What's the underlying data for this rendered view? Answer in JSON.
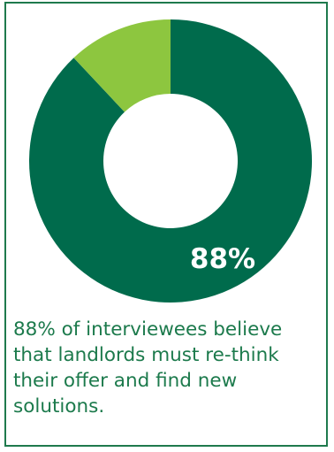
{
  "chart_data": {
    "type": "pie",
    "donut": true,
    "categories": [
      "",
      ""
    ],
    "values": [
      88,
      12
    ],
    "slice_labels": [
      "88%",
      ""
    ],
    "colors": [
      "#006b4c",
      "#8dc63f"
    ],
    "label_color": "#ffffff",
    "title": "",
    "legend": "none"
  },
  "caption": {
    "text": "88% of interviewees believe that landlords must re-think their offer and find new solutions.",
    "color": "#1c7a4c"
  },
  "frame": {
    "border_color": "#1f7a4d"
  }
}
